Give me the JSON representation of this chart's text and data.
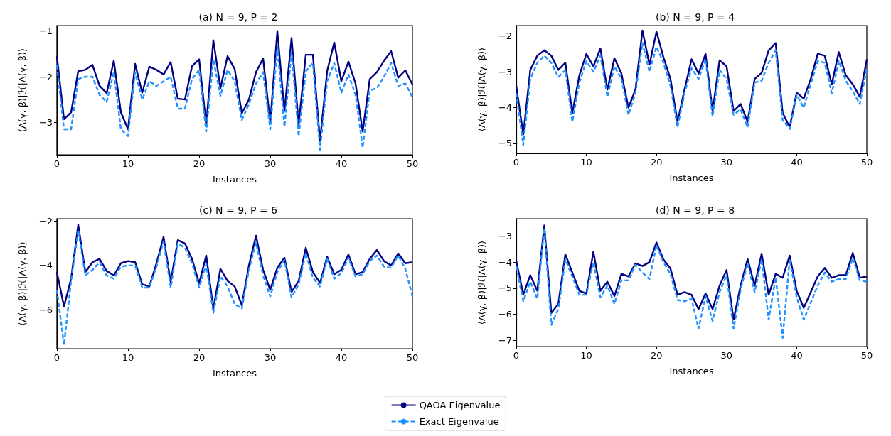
{
  "chart_data": [
    {
      "type": "line",
      "title": "(a) N = 9, P = 2",
      "xlabel": "Instances",
      "ylabel": "⟨Λ(γ, β)|ℋ|Λ(γ, β)⟩",
      "x": [
        0,
        1,
        2,
        3,
        4,
        5,
        6,
        7,
        8,
        9,
        10,
        11,
        12,
        13,
        14,
        15,
        16,
        17,
        18,
        19,
        20,
        21,
        22,
        23,
        24,
        25,
        26,
        27,
        28,
        29,
        30,
        31,
        32,
        33,
        34,
        35,
        36,
        37,
        38,
        39,
        40,
        41,
        42,
        43,
        44,
        45,
        46,
        47,
        48,
        49,
        50
      ],
      "xlim": [
        0,
        50
      ],
      "xticks": [
        0,
        10,
        20,
        30,
        40,
        50
      ],
      "ylim": [
        -3.71,
        -0.88
      ],
      "yticks": [
        -3,
        -2,
        -1
      ],
      "grid": false,
      "marker": "none",
      "legend": "bottom",
      "series": [
        {
          "name": "QAOA Eigenvalue",
          "color": "#000080",
          "line_style": "solid",
          "values": [
            -1.55,
            -2.93,
            -2.78,
            -1.88,
            -1.85,
            -1.74,
            -2.2,
            -2.36,
            -1.65,
            -2.78,
            -3.15,
            -1.72,
            -2.35,
            -1.78,
            -1.85,
            -1.95,
            -1.68,
            -2.48,
            -2.5,
            -1.77,
            -1.62,
            -3.05,
            -1.2,
            -2.25,
            -1.55,
            -1.83,
            -2.8,
            -2.5,
            -1.9,
            -1.6,
            -3.0,
            -1.0,
            -2.75,
            -1.15,
            -3.05,
            -1.52,
            -1.52,
            -3.4,
            -1.88,
            -1.25,
            -2.1,
            -1.67,
            -2.15,
            -3.2,
            -2.05,
            -1.9,
            -1.65,
            -1.44,
            -2.02,
            -1.86,
            -2.17
          ]
        },
        {
          "name": "Exact Eigenvalue",
          "color": "#1e90ff",
          "line_style": "dashed",
          "values": [
            -1.75,
            -3.15,
            -3.15,
            -2.05,
            -2.0,
            -2.0,
            -2.4,
            -2.55,
            -1.9,
            -3.15,
            -3.3,
            -1.9,
            -2.5,
            -2.1,
            -2.2,
            -2.1,
            -2.0,
            -2.7,
            -2.7,
            -2.05,
            -1.85,
            -3.2,
            -1.62,
            -2.42,
            -1.85,
            -2.1,
            -2.95,
            -2.6,
            -2.15,
            -1.9,
            -3.15,
            -1.35,
            -3.1,
            -1.45,
            -3.3,
            -1.88,
            -1.7,
            -3.6,
            -2.1,
            -1.7,
            -2.35,
            -1.95,
            -2.4,
            -3.55,
            -2.3,
            -2.25,
            -2.0,
            -1.7,
            -2.2,
            -2.15,
            -2.45
          ]
        }
      ]
    },
    {
      "type": "line",
      "title": "(b) N = 9, P = 4",
      "xlabel": "Instances",
      "ylabel": "⟨Λ(γ, β)|ℋ|Λ(γ, β)⟩",
      "x": [
        0,
        1,
        2,
        3,
        4,
        5,
        6,
        7,
        8,
        9,
        10,
        11,
        12,
        13,
        14,
        15,
        16,
        17,
        18,
        19,
        20,
        21,
        22,
        23,
        24,
        25,
        26,
        27,
        28,
        29,
        30,
        31,
        32,
        33,
        34,
        35,
        36,
        37,
        38,
        39,
        40,
        41,
        42,
        43,
        44,
        45,
        46,
        47,
        48,
        49,
        50
      ],
      "xlim": [
        0,
        50
      ],
      "xticks": [
        0,
        10,
        20,
        30,
        40,
        50
      ],
      "ylim": [
        -5.28,
        -1.71
      ],
      "yticks": [
        -5,
        -4,
        -3,
        -2
      ],
      "grid": false,
      "marker": "none",
      "series": [
        {
          "color": "#000080",
          "line_style": "solid",
          "values": [
            -3.4,
            -4.75,
            -2.95,
            -2.55,
            -2.4,
            -2.55,
            -2.95,
            -2.75,
            -4.15,
            -3.1,
            -2.5,
            -2.85,
            -2.35,
            -3.5,
            -2.62,
            -3.05,
            -4.0,
            -3.5,
            -1.85,
            -2.8,
            -1.88,
            -2.6,
            -3.2,
            -4.4,
            -3.5,
            -2.65,
            -3.05,
            -2.5,
            -4.1,
            -2.68,
            -2.85,
            -4.1,
            -3.9,
            -4.4,
            -3.2,
            -3.03,
            -2.4,
            -2.2,
            -4.15,
            -4.55,
            -3.58,
            -3.75,
            -3.2,
            -2.5,
            -2.55,
            -3.35,
            -2.45,
            -3.1,
            -3.35,
            -3.7,
            -2.65
          ]
        },
        {
          "color": "#1e90ff",
          "line_style": "dashed",
          "values": [
            -3.6,
            -5.05,
            -3.2,
            -2.75,
            -2.55,
            -2.75,
            -3.15,
            -2.95,
            -4.4,
            -3.3,
            -2.7,
            -3.0,
            -2.55,
            -3.7,
            -2.85,
            -3.2,
            -4.2,
            -3.6,
            -2.2,
            -3.0,
            -2.3,
            -2.75,
            -3.4,
            -4.55,
            -3.6,
            -2.9,
            -3.2,
            -2.65,
            -4.25,
            -2.95,
            -3.2,
            -4.2,
            -4.05,
            -4.55,
            -3.3,
            -3.25,
            -2.75,
            -2.4,
            -4.35,
            -4.6,
            -3.65,
            -4.0,
            -3.35,
            -2.7,
            -2.75,
            -3.6,
            -2.7,
            -3.25,
            -3.55,
            -3.9,
            -2.9
          ]
        }
      ]
    },
    {
      "type": "line",
      "title": "(c) N = 9, P = 6",
      "xlabel": "Instances",
      "ylabel": "⟨Λ(γ, β)|ℋ|Λ(γ, β)⟩",
      "x": [
        0,
        1,
        2,
        3,
        4,
        5,
        6,
        7,
        8,
        9,
        10,
        11,
        12,
        13,
        14,
        15,
        16,
        17,
        18,
        19,
        20,
        21,
        22,
        23,
        24,
        25,
        26,
        27,
        28,
        29,
        30,
        31,
        32,
        33,
        34,
        35,
        36,
        37,
        38,
        39,
        40,
        41,
        42,
        43,
        44,
        45,
        46,
        47,
        48,
        49,
        50
      ],
      "xlim": [
        0,
        50
      ],
      "xticks": [
        0,
        10,
        20,
        30,
        40,
        50
      ],
      "ylim": [
        -7.77,
        -1.88
      ],
      "yticks": [
        -6,
        -4,
        -2
      ],
      "grid": false,
      "marker": "none",
      "series": [
        {
          "color": "#000080",
          "line_style": "solid",
          "values": [
            -4.3,
            -5.85,
            -4.6,
            -2.15,
            -4.3,
            -3.85,
            -3.7,
            -4.25,
            -4.45,
            -3.9,
            -3.8,
            -3.85,
            -4.85,
            -4.95,
            -3.9,
            -2.7,
            -4.75,
            -2.85,
            -3.0,
            -3.7,
            -4.8,
            -3.55,
            -5.95,
            -4.15,
            -4.7,
            -4.95,
            -5.8,
            -4.0,
            -2.65,
            -4.2,
            -5.1,
            -4.1,
            -3.65,
            -5.2,
            -4.7,
            -3.2,
            -4.3,
            -4.8,
            -3.6,
            -4.4,
            -4.2,
            -3.5,
            -4.4,
            -4.3,
            -3.7,
            -3.3,
            -3.8,
            -4.0,
            -3.45,
            -3.9,
            -3.85
          ]
        },
        {
          "color": "#1e90ff",
          "line_style": "dashed",
          "values": [
            -5.1,
            -7.6,
            -4.7,
            -2.4,
            -4.45,
            -4.2,
            -3.85,
            -4.45,
            -4.6,
            -4.05,
            -4.0,
            -4.0,
            -5.0,
            -5.0,
            -4.05,
            -2.9,
            -5.0,
            -3.0,
            -3.2,
            -3.9,
            -5.0,
            -3.95,
            -6.15,
            -4.5,
            -4.95,
            -5.75,
            -5.95,
            -4.2,
            -2.95,
            -4.45,
            -5.4,
            -4.3,
            -3.75,
            -5.45,
            -4.85,
            -3.45,
            -4.55,
            -4.95,
            -3.7,
            -4.6,
            -4.35,
            -3.65,
            -4.5,
            -4.4,
            -3.8,
            -3.55,
            -4.05,
            -4.1,
            -3.55,
            -4.15,
            -5.4
          ]
        }
      ]
    },
    {
      "type": "line",
      "title": "(d) N = 9, P = 8",
      "xlabel": "Instances",
      "ylabel": "⟨Λ(γ, β)|ℋ|Λ(γ, β)⟩",
      "x": [
        0,
        1,
        2,
        3,
        4,
        5,
        6,
        7,
        8,
        9,
        10,
        11,
        12,
        13,
        14,
        15,
        16,
        17,
        18,
        19,
        20,
        21,
        22,
        23,
        24,
        25,
        26,
        27,
        28,
        29,
        30,
        31,
        32,
        33,
        34,
        35,
        36,
        37,
        38,
        39,
        40,
        41,
        42,
        43,
        44,
        45,
        46,
        47,
        48,
        49,
        50
      ],
      "xlim": [
        0,
        50
      ],
      "xticks": [
        0,
        10,
        20,
        30,
        40,
        50
      ],
      "ylim": [
        -7.23,
        -2.34
      ],
      "yticks": [
        -7,
        -6,
        -5,
        -4,
        -3
      ],
      "grid": false,
      "marker": "none",
      "series": [
        {
          "color": "#000080",
          "line_style": "solid",
          "values": [
            -3.95,
            -5.25,
            -4.5,
            -5.1,
            -2.6,
            -5.95,
            -5.6,
            -3.7,
            -4.4,
            -5.1,
            -5.2,
            -3.6,
            -5.1,
            -4.75,
            -5.3,
            -4.45,
            -4.55,
            -4.05,
            -4.15,
            -4.0,
            -3.25,
            -3.9,
            -4.25,
            -5.25,
            -5.15,
            -5.25,
            -5.8,
            -5.2,
            -5.8,
            -4.9,
            -4.3,
            -6.2,
            -4.9,
            -3.88,
            -4.9,
            -3.68,
            -5.25,
            -4.45,
            -4.6,
            -3.75,
            -5.1,
            -5.75,
            -5.15,
            -4.55,
            -4.22,
            -4.6,
            -4.5,
            -4.5,
            -3.65,
            -4.6,
            -4.55
          ]
        },
        {
          "color": "#1e90ff",
          "line_style": "dashed",
          "values": [
            -4.15,
            -5.5,
            -4.75,
            -5.4,
            -2.7,
            -6.4,
            -5.8,
            -3.9,
            -4.55,
            -5.25,
            -5.25,
            -4.0,
            -5.35,
            -4.9,
            -5.6,
            -4.7,
            -4.7,
            -4.1,
            -4.4,
            -4.65,
            -3.35,
            -4.0,
            -4.45,
            -5.45,
            -5.5,
            -5.4,
            -6.55,
            -5.3,
            -6.25,
            -5.15,
            -4.5,
            -6.55,
            -5.05,
            -4.05,
            -5.15,
            -3.9,
            -6.2,
            -4.6,
            -6.9,
            -3.9,
            -5.35,
            -6.2,
            -5.55,
            -4.9,
            -4.4,
            -4.75,
            -4.65,
            -4.65,
            -3.85,
            -4.7,
            -4.75
          ]
        }
      ]
    }
  ]
}
